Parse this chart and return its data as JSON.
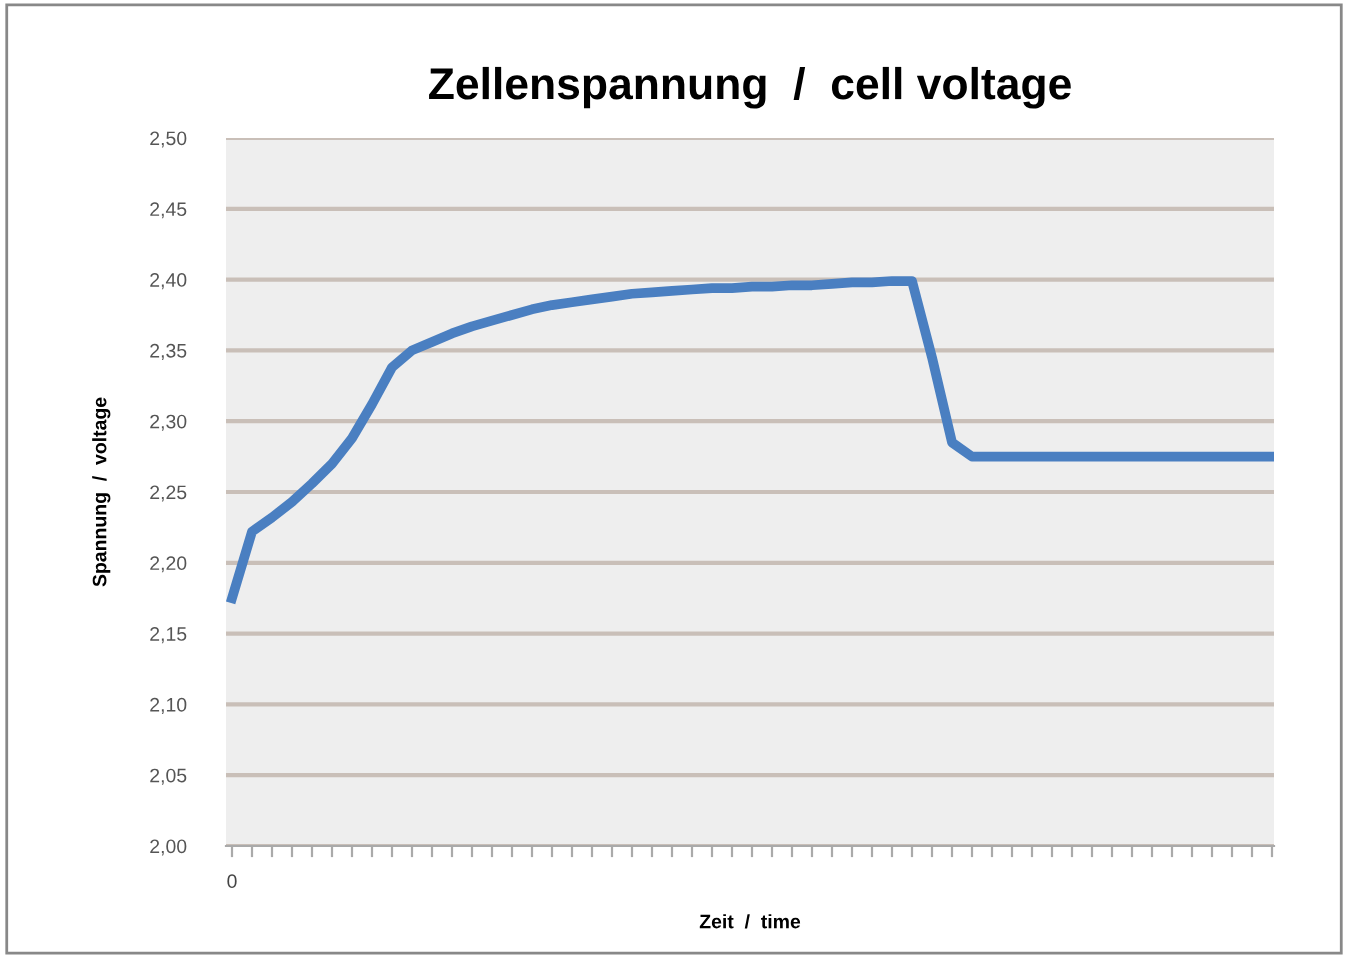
{
  "chart_data": {
    "type": "line",
    "title": "Zellenspannung  /  cell voltage",
    "xlabel": "Zeit  /  time",
    "ylabel": "Spannung  /  voltage",
    "categories": [
      "0",
      null,
      null,
      null,
      null,
      null,
      null,
      null,
      null,
      null,
      null,
      null,
      null,
      null,
      null,
      null,
      null,
      null,
      null,
      null,
      null,
      null,
      null,
      null,
      null,
      null,
      null,
      null,
      null,
      null,
      null,
      null,
      null,
      null,
      null,
      null,
      null,
      null,
      null,
      null,
      null,
      null,
      null,
      null,
      null,
      null,
      null,
      null,
      null,
      null,
      null,
      null,
      null
    ],
    "series": [
      {
        "color": "#4a7fc1",
        "values": [
          2.175,
          2.222,
          2.232,
          2.243,
          2.256,
          2.27,
          2.288,
          2.312,
          2.338,
          2.35,
          2.356,
          2.362,
          2.367,
          2.371,
          2.375,
          2.379,
          2.382,
          2.384,
          2.386,
          2.388,
          2.39,
          2.391,
          2.392,
          2.393,
          2.394,
          2.394,
          2.395,
          2.395,
          2.396,
          2.396,
          2.397,
          2.398,
          2.398,
          2.399,
          2.399,
          2.345,
          2.285,
          2.275,
          2.275,
          2.275,
          2.275,
          2.275,
          2.275,
          2.275,
          2.275,
          2.275,
          2.275,
          2.275,
          2.275,
          2.275,
          2.275,
          2.275,
          2.275
        ]
      }
    ],
    "ylim": [
      2.0,
      2.5
    ],
    "yticks": [
      {
        "value": 2.0,
        "label": "2,00"
      },
      {
        "value": 2.05,
        "label": "2,05"
      },
      {
        "value": 2.1,
        "label": "2,10"
      },
      {
        "value": 2.15,
        "label": "2,15"
      },
      {
        "value": 2.2,
        "label": "2,20"
      },
      {
        "value": 2.25,
        "label": "2,25"
      },
      {
        "value": 2.3,
        "label": "2,30"
      },
      {
        "value": 2.35,
        "label": "2,35"
      },
      {
        "value": 2.4,
        "label": "2,40"
      },
      {
        "value": 2.45,
        "label": "2,45"
      },
      {
        "value": 2.5,
        "label": "2,50"
      }
    ],
    "grid": "y",
    "legend": false,
    "marker": "none",
    "line_style": "solid"
  }
}
